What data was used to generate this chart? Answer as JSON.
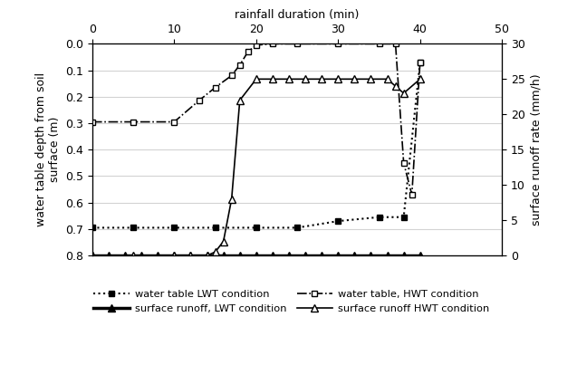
{
  "xlabel_top": "rainfall duration (min)",
  "ylabel_left": "water table depth from soil\nsurface (m)",
  "ylabel_right": "surface runoff rate (mm/h)",
  "xlim": [
    0,
    50
  ],
  "ylim_left": [
    0.8,
    0.0
  ],
  "ylim_right": [
    0,
    30
  ],
  "xticks": [
    0,
    10,
    20,
    30,
    40,
    50
  ],
  "yticks_left": [
    0.0,
    0.1,
    0.2,
    0.3,
    0.4,
    0.5,
    0.6,
    0.7,
    0.8
  ],
  "yticks_right": [
    0,
    5,
    10,
    15,
    20,
    25,
    30
  ],
  "wt_lwt_x": [
    0,
    5,
    10,
    15,
    20,
    25,
    30,
    35,
    38,
    40
  ],
  "wt_lwt_y": [
    0.695,
    0.695,
    0.695,
    0.695,
    0.695,
    0.695,
    0.67,
    0.655,
    0.655,
    0.07
  ],
  "wt_hwt_x": [
    0,
    5,
    10,
    13,
    15,
    17,
    18,
    19,
    20,
    22,
    25,
    30,
    35,
    37,
    38,
    39,
    40
  ],
  "wt_hwt_y": [
    0.295,
    0.295,
    0.295,
    0.215,
    0.165,
    0.12,
    0.08,
    0.03,
    0.005,
    0.0,
    0.0,
    0.0,
    0.0,
    0.0,
    0.45,
    0.57,
    0.07
  ],
  "sr_lwt_x": [
    0,
    2,
    4,
    6,
    8,
    10,
    12,
    14,
    16,
    18,
    20,
    22,
    24,
    26,
    28,
    30,
    32,
    34,
    36,
    38,
    40
  ],
  "sr_lwt_runoff": [
    0,
    0,
    0,
    0,
    0,
    0,
    0,
    0,
    0,
    0,
    0,
    0,
    0,
    0,
    0,
    0,
    0,
    0,
    0,
    0,
    0
  ],
  "sr_hwt_x": [
    0,
    5,
    10,
    12,
    14,
    15,
    16,
    17,
    18,
    20,
    22,
    24,
    26,
    28,
    30,
    32,
    34,
    36,
    37,
    38,
    40
  ],
  "sr_hwt_runoff": [
    0,
    0,
    0,
    0,
    0,
    0.5,
    2,
    8,
    22,
    25,
    25,
    25,
    25,
    25,
    25,
    25,
    25,
    25,
    24,
    23,
    25
  ],
  "background_color": "#ffffff"
}
